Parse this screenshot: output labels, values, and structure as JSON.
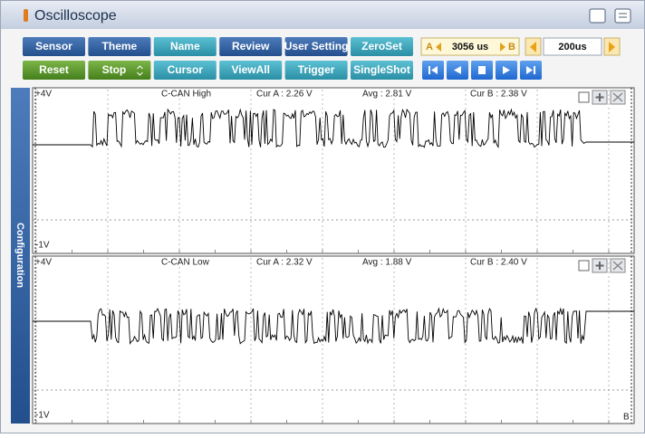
{
  "window": {
    "title": "Oscilloscope"
  },
  "toolbar": {
    "row1": [
      "Sensor",
      "Theme",
      "Name",
      "Review",
      "User Setting",
      "ZeroSet"
    ],
    "row2": [
      "Reset",
      "Stop",
      "Cursor",
      "ViewAll",
      "Trigger",
      "SingleShot"
    ]
  },
  "cursor_time": {
    "a": "A",
    "value": "3056 us",
    "b": "B"
  },
  "time_div": "200us",
  "side_tab": "Configuration",
  "channels": [
    {
      "top": "+4V",
      "name": "C-CAN High",
      "cur_a": "Cur A : 2.26 V",
      "avg": "Avg : 2.81 V",
      "cur_b": "Cur B : 2.38 V",
      "bottom": "-1V"
    },
    {
      "top": "+4V",
      "name": "C-CAN Low",
      "cur_a": "Cur A : 2.32 V",
      "avg": "Avg : 1.88 V",
      "cur_b": "Cur B : 2.40 V",
      "bottom": "-1V"
    }
  ],
  "cursor_b_marker": "B"
}
